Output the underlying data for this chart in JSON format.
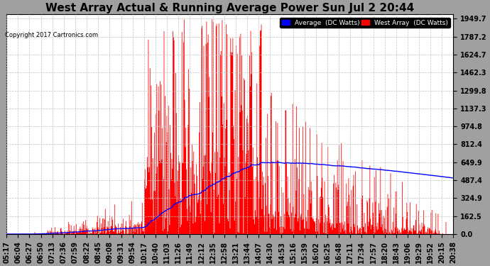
{
  "title": "West Array Actual & Running Average Power Sun Jul 2 20:44",
  "copyright": "Copyright 2017 Cartronics.com",
  "yticks": [
    0.0,
    162.5,
    324.9,
    487.4,
    649.9,
    812.4,
    974.8,
    1137.3,
    1299.8,
    1462.3,
    1624.7,
    1787.2,
    1949.7
  ],
  "ylim": [
    0.0,
    1949.7
  ],
  "xtick_labels": [
    "05:17",
    "06:04",
    "06:27",
    "06:50",
    "07:13",
    "07:36",
    "07:59",
    "08:22",
    "08:45",
    "09:08",
    "09:31",
    "09:54",
    "10:17",
    "10:40",
    "11:03",
    "11:26",
    "11:49",
    "12:12",
    "12:35",
    "12:58",
    "13:21",
    "13:44",
    "14:07",
    "14:30",
    "14:53",
    "15:16",
    "15:39",
    "16:02",
    "16:25",
    "16:48",
    "17:11",
    "17:34",
    "17:57",
    "18:20",
    "18:43",
    "19:06",
    "19:29",
    "19:52",
    "20:15",
    "20:38"
  ],
  "legend_avg_label": "Average  (DC Watts)",
  "legend_west_label": "West Array  (DC Watts)",
  "outer_bg_color": "#a0a0a0",
  "plot_bg_color": "#ffffff",
  "grid_color": "#c0c0c0",
  "red_color": "#ff0000",
  "blue_color": "#0000ff",
  "title_fontsize": 11,
  "tick_fontsize": 7,
  "figsize": [
    6.9,
    3.75
  ],
  "dpi": 100
}
